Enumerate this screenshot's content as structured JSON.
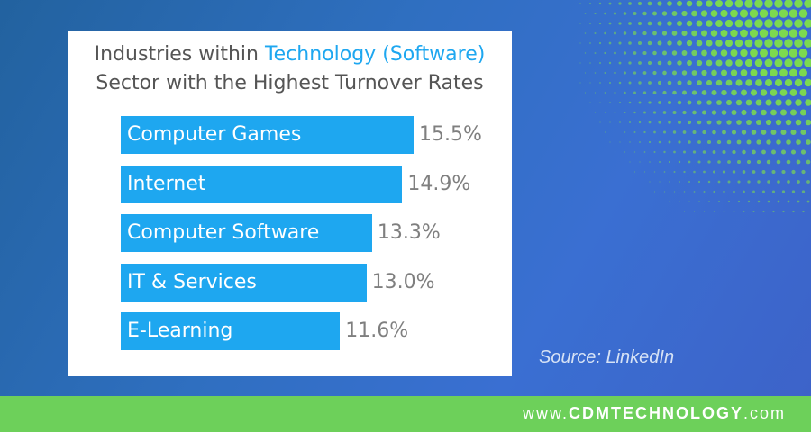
{
  "colors": {
    "accent": "#1ea7f0",
    "footer": "#6dd05a",
    "dots": "#7cd94f"
  },
  "chart_data": {
    "type": "bar",
    "orientation": "horizontal",
    "title_part1": "Industries within ",
    "title_accent": "Technology (Software)",
    "title_line2": "Sector with the Highest Turnover Rates",
    "categories": [
      "Computer Games",
      "Internet",
      "Computer Software",
      "IT & Services",
      "E-Learning"
    ],
    "values": [
      15.5,
      14.9,
      13.3,
      13.0,
      11.6
    ],
    "value_labels": [
      "15.5%",
      "14.9%",
      "13.3%",
      "13.0%",
      "11.6%"
    ],
    "xlim": [
      0,
      15.5
    ],
    "grid": false
  },
  "source": "Source: LinkedIn",
  "footer": {
    "prefix": "www.",
    "brand": "CDMTECHNOLOGY",
    "suffix": ".com"
  }
}
